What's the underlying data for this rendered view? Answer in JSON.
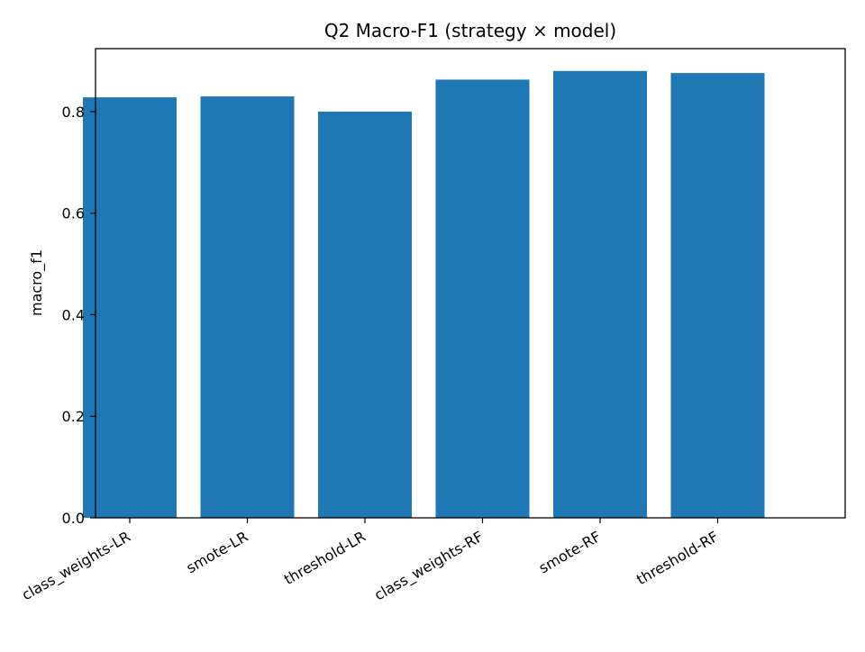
{
  "chart_data": {
    "type": "bar",
    "title": "Q2 Macro-F1 (strategy × model)",
    "xlabel": "",
    "ylabel": "macro_f1",
    "categories": [
      "class_weights-LR",
      "smote-LR",
      "threshold-LR",
      "class_weights-RF",
      "smote-RF",
      "threshold-RF"
    ],
    "values": [
      0.828,
      0.83,
      0.8,
      0.863,
      0.88,
      0.876
    ],
    "ylim": [
      0,
      0.924
    ],
    "yticks": [
      "0.0",
      "0.2",
      "0.4",
      "0.6",
      "0.8"
    ],
    "grid": false,
    "legend": false,
    "bar_color": "#1f77b4"
  }
}
